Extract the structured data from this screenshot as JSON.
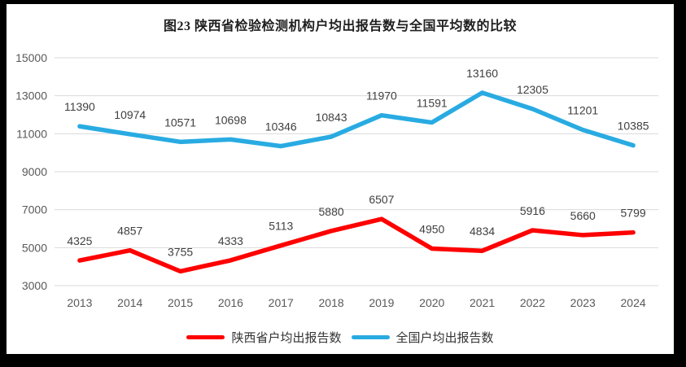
{
  "title": "图23 陕西省检验检测机构户均出报告数与全国平均数的比较",
  "chart_data": {
    "type": "line",
    "title": "图23 陕西省检验检测机构户均出报告数与全国平均数的比较",
    "categories": [
      "2013",
      "2014",
      "2015",
      "2016",
      "2017",
      "2018",
      "2019",
      "2020",
      "2021",
      "2022",
      "2023",
      "2024"
    ],
    "series": [
      {
        "name": "陕西省户均出报告数",
        "color": "#fe0000",
        "values": [
          4325,
          4857,
          3755,
          4333,
          5113,
          5880,
          6507,
          4950,
          4834,
          5916,
          5660,
          5799
        ]
      },
      {
        "name": "全国户均出报告数",
        "color": "#29abe2",
        "values": [
          11390,
          10974,
          10571,
          10698,
          10346,
          10843,
          11970,
          11591,
          13160,
          12305,
          11201,
          10385
        ]
      }
    ],
    "ylim": [
      3000,
      15000
    ],
    "y_ticks": [
      3000,
      5000,
      7000,
      9000,
      11000,
      13000,
      15000
    ],
    "xlabel": "",
    "ylabel": "",
    "grid": true,
    "data_labels": true,
    "legend_position": "bottom"
  },
  "colors": {
    "frame": "#000000",
    "background": "#ffffff",
    "gridline": "#d9d9d9",
    "tick_label": "#595959",
    "data_label": "#404040",
    "title": "#1f1f1f"
  }
}
